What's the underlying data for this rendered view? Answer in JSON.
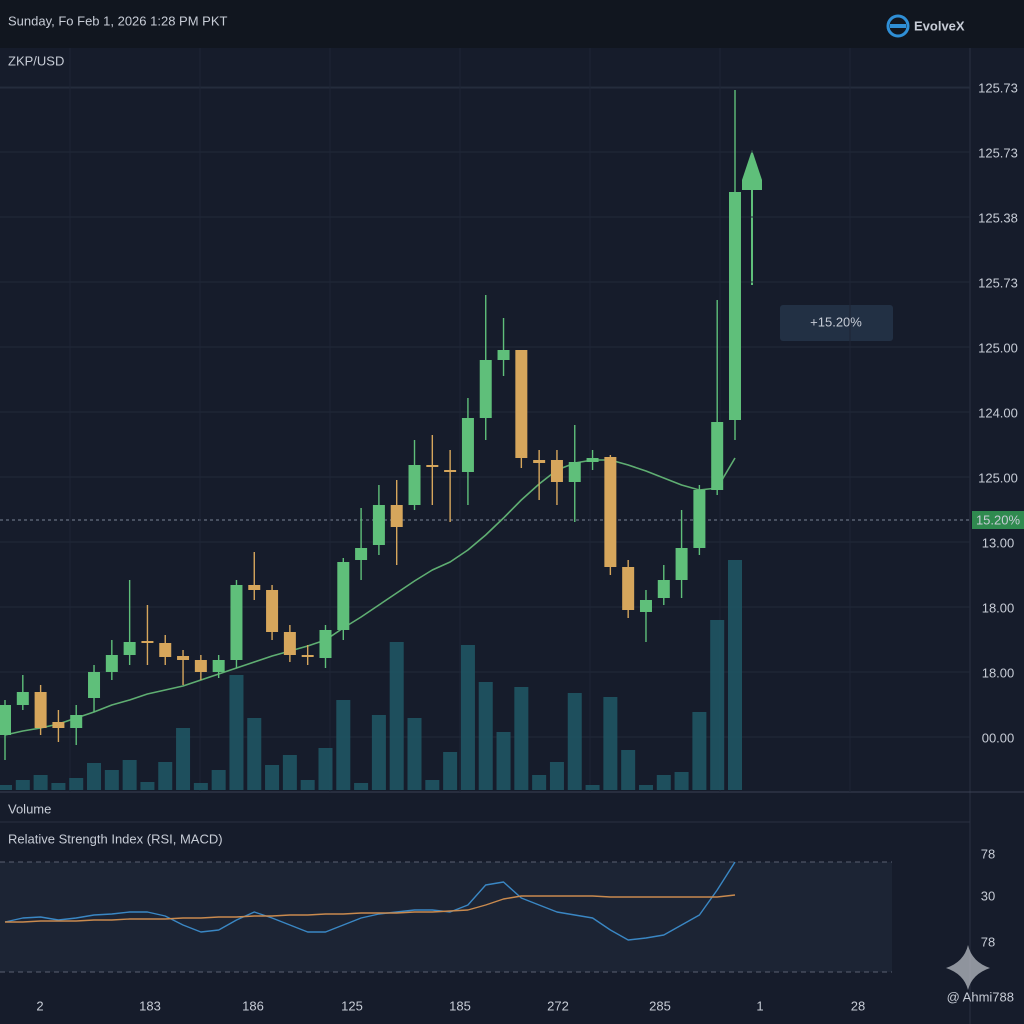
{
  "header": {
    "datetime": "Sunday, Fo Feb 1, 2026 1:28 PM PKT",
    "brand": "EvolveX"
  },
  "chart_data": {
    "type": "candlestick",
    "title": "ZKP/USD",
    "annotation": "+15.20%",
    "price_tag": "15.20%",
    "y_axis_labels": [
      "125.73",
      "125.73",
      "125.38",
      "125.73",
      "125.00",
      "124.00",
      "125.00",
      "13.00",
      "18.00",
      "18.00",
      "00.00"
    ],
    "x_axis_labels": [
      "2",
      "183",
      "186",
      "125",
      "185",
      "272",
      "285",
      "1",
      "28"
    ],
    "ylim": [
      -53,
      687
    ],
    "up_color": "#5fbf7a",
    "down_color": "#d6a65c",
    "open": [
      2,
      32,
      45,
      15,
      9,
      39,
      65,
      82,
      96,
      94,
      81,
      77,
      65,
      77,
      152,
      147,
      105,
      82,
      79,
      107,
      177,
      192,
      232,
      232,
      272,
      267,
      265,
      319,
      377,
      387,
      277,
      277,
      255,
      275,
      280,
      170,
      125,
      139,
      157,
      189,
      247,
      317
    ],
    "high": [
      37,
      62,
      52,
      27,
      32,
      72,
      97,
      157,
      132,
      102,
      87,
      82,
      82,
      157,
      185,
      152,
      112,
      92,
      112,
      179,
      229,
      252,
      257,
      297,
      302,
      287,
      339,
      442,
      419,
      387,
      287,
      287,
      312,
      287,
      282,
      177,
      147,
      172,
      227,
      252,
      437,
      647
    ],
    "low": [
      -23,
      27,
      2,
      -5,
      -8,
      25,
      57,
      72,
      72,
      72,
      52,
      57,
      59,
      69,
      137,
      97,
      75,
      72,
      69,
      97,
      157,
      182,
      172,
      227,
      232,
      215,
      232,
      297,
      361,
      269,
      237,
      232,
      215,
      267,
      162,
      119,
      95,
      132,
      139,
      182,
      242,
      297
    ],
    "close": [
      32,
      45,
      9,
      9,
      22,
      65,
      82,
      95,
      94,
      80,
      77,
      65,
      77,
      152,
      147,
      105,
      82,
      80,
      107,
      175,
      189,
      232,
      210,
      272,
      270,
      265,
      319,
      377,
      387,
      279,
      274,
      255,
      275,
      279,
      170,
      127,
      137,
      157,
      189,
      247,
      315,
      545
    ],
    "moving_average": {
      "color": "#5fae72",
      "values": [
        2,
        6,
        9,
        13,
        19,
        25,
        32,
        37,
        43,
        47,
        51,
        57,
        63,
        69,
        75,
        81,
        86,
        91,
        97,
        109,
        120,
        132,
        144,
        156,
        167,
        175,
        187,
        202,
        219,
        237,
        253,
        267,
        274,
        277,
        277,
        272,
        266,
        259,
        252,
        247,
        249,
        279
      ]
    },
    "volume": {
      "title": "Volume",
      "color": "#1f5563",
      "ylim": [
        0,
        240
      ],
      "values": [
        5,
        10,
        15,
        7,
        12,
        27,
        20,
        30,
        8,
        28,
        62,
        7,
        20,
        115,
        72,
        25,
        35,
        10,
        42,
        90,
        7,
        75,
        148,
        72,
        10,
        38,
        145,
        108,
        58,
        103,
        15,
        28,
        97,
        5,
        93,
        40,
        5,
        15,
        18,
        78,
        170,
        230
      ]
    },
    "indicator": {
      "title": "Relative Strength Index (RSI, MACD)",
      "ylim": [
        0,
        140
      ],
      "y_axis_labels": [
        "78",
        "30",
        "78"
      ],
      "series": [
        {
          "color": "#3a87c4",
          "values": [
            63,
            67,
            68,
            65,
            67,
            70,
            71,
            73,
            73,
            69,
            60,
            53,
            55,
            65,
            73,
            67,
            60,
            53,
            53,
            60,
            67,
            71,
            73,
            75,
            75,
            73,
            80,
            100,
            103,
            87,
            80,
            73,
            70,
            67,
            55,
            45,
            47,
            50,
            60,
            70,
            95,
            123
          ]
        },
        {
          "color": "#c98a4e",
          "values": [
            63,
            63,
            64,
            64,
            64,
            65,
            65,
            66,
            66,
            66,
            67,
            67,
            68,
            68,
            69,
            69,
            70,
            70,
            71,
            71,
            72,
            72,
            72,
            73,
            73,
            74,
            75,
            80,
            86,
            89,
            89,
            89,
            89,
            89,
            88,
            88,
            88,
            88,
            88,
            88,
            88,
            90
          ]
        }
      ]
    }
  },
  "watermark": "@ Ahmi788"
}
